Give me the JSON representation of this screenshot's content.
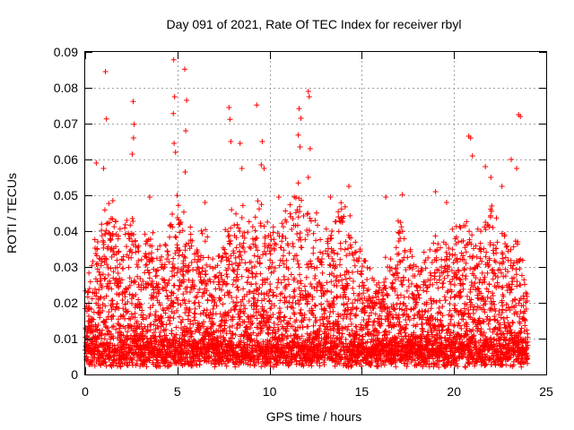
{
  "chart_data": {
    "type": "scatter",
    "title": "Day 091 of 2021, Rate Of TEC Index for receiver rbyl",
    "xlabel": "GPS time / hours",
    "ylabel": "ROTI / TECUs",
    "xlim": [
      0,
      25
    ],
    "ylim": [
      0,
      0.09
    ],
    "xticks": [
      0,
      5,
      10,
      15,
      20,
      25
    ],
    "xtick_labels": [
      "0",
      "5",
      "10",
      "15",
      "20",
      "25"
    ],
    "yticks": [
      0,
      0.01,
      0.02,
      0.03,
      0.04,
      0.05,
      0.06,
      0.07,
      0.08,
      0.09
    ],
    "ytick_labels": [
      "0",
      "0.01",
      "0.02",
      "0.03",
      "0.04",
      "0.05",
      "0.06",
      "0.07",
      "0.08",
      "0.09"
    ],
    "grid": true,
    "marker": "+",
    "marker_color": "#ff0000",
    "series": [
      {
        "name": "ROTI",
        "points": [
          [
            1.1,
            0.0845
          ],
          [
            1.15,
            0.0713
          ],
          [
            2.6,
            0.0762
          ],
          [
            2.65,
            0.0698
          ],
          [
            2.62,
            0.066
          ],
          [
            2.55,
            0.0615
          ],
          [
            4.8,
            0.0878
          ],
          [
            4.85,
            0.0775
          ],
          [
            4.78,
            0.0728
          ],
          [
            4.82,
            0.0645
          ],
          [
            4.9,
            0.062
          ],
          [
            5.4,
            0.0852
          ],
          [
            5.5,
            0.0765
          ],
          [
            5.45,
            0.068
          ],
          [
            5.42,
            0.0565
          ],
          [
            7.8,
            0.0745
          ],
          [
            7.85,
            0.0712
          ],
          [
            7.9,
            0.065
          ],
          [
            8.4,
            0.0645
          ],
          [
            8.5,
            0.0575
          ],
          [
            9.3,
            0.0752
          ],
          [
            9.6,
            0.065
          ],
          [
            9.55,
            0.0585
          ],
          [
            9.7,
            0.0575
          ],
          [
            11.6,
            0.0742
          ],
          [
            11.7,
            0.0715
          ],
          [
            11.55,
            0.0668
          ],
          [
            11.65,
            0.0635
          ],
          [
            12.1,
            0.079
          ],
          [
            12.15,
            0.0775
          ],
          [
            12.2,
            0.063
          ],
          [
            12.1,
            0.055
          ],
          [
            16.3,
            0.0495
          ],
          [
            17.2,
            0.0502
          ],
          [
            19.0,
            0.051
          ],
          [
            19.6,
            0.048
          ],
          [
            20.8,
            0.0665
          ],
          [
            20.9,
            0.066
          ],
          [
            21.0,
            0.061
          ],
          [
            21.7,
            0.058
          ],
          [
            22.0,
            0.055
          ],
          [
            22.6,
            0.0525
          ],
          [
            23.1,
            0.06
          ],
          [
            23.5,
            0.0725
          ],
          [
            23.6,
            0.072
          ],
          [
            23.4,
            0.0575
          ],
          [
            0.6,
            0.059
          ],
          [
            1.0,
            0.0575
          ],
          [
            1.5,
            0.0485
          ],
          [
            3.5,
            0.0495
          ],
          [
            6.5,
            0.048
          ],
          [
            10.5,
            0.0495
          ],
          [
            13.3,
            0.0495
          ],
          [
            14.3,
            0.0525
          ]
        ]
      }
    ],
    "envelope": {
      "hours": [
        0,
        0.5,
        1,
        1.5,
        2,
        2.5,
        3,
        3.5,
        4,
        4.5,
        5,
        5.5,
        6,
        6.5,
        7,
        7.5,
        8,
        8.5,
        9,
        9.5,
        10,
        10.5,
        11,
        11.5,
        12,
        12.5,
        13,
        13.5,
        14,
        14.5,
        15,
        15.5,
        16,
        16.5,
        17,
        17.5,
        18,
        18.5,
        19,
        19.5,
        20,
        20.5,
        21,
        21.5,
        22,
        22.5,
        23,
        23.5,
        24
      ],
      "typical_max": [
        0.018,
        0.03,
        0.042,
        0.04,
        0.035,
        0.042,
        0.03,
        0.038,
        0.03,
        0.036,
        0.045,
        0.04,
        0.03,
        0.038,
        0.028,
        0.032,
        0.042,
        0.04,
        0.036,
        0.045,
        0.04,
        0.034,
        0.042,
        0.048,
        0.046,
        0.04,
        0.032,
        0.038,
        0.044,
        0.036,
        0.03,
        0.022,
        0.024,
        0.028,
        0.04,
        0.03,
        0.025,
        0.03,
        0.036,
        0.03,
        0.035,
        0.04,
        0.036,
        0.038,
        0.042,
        0.035,
        0.036,
        0.032,
        0.02
      ]
    }
  }
}
